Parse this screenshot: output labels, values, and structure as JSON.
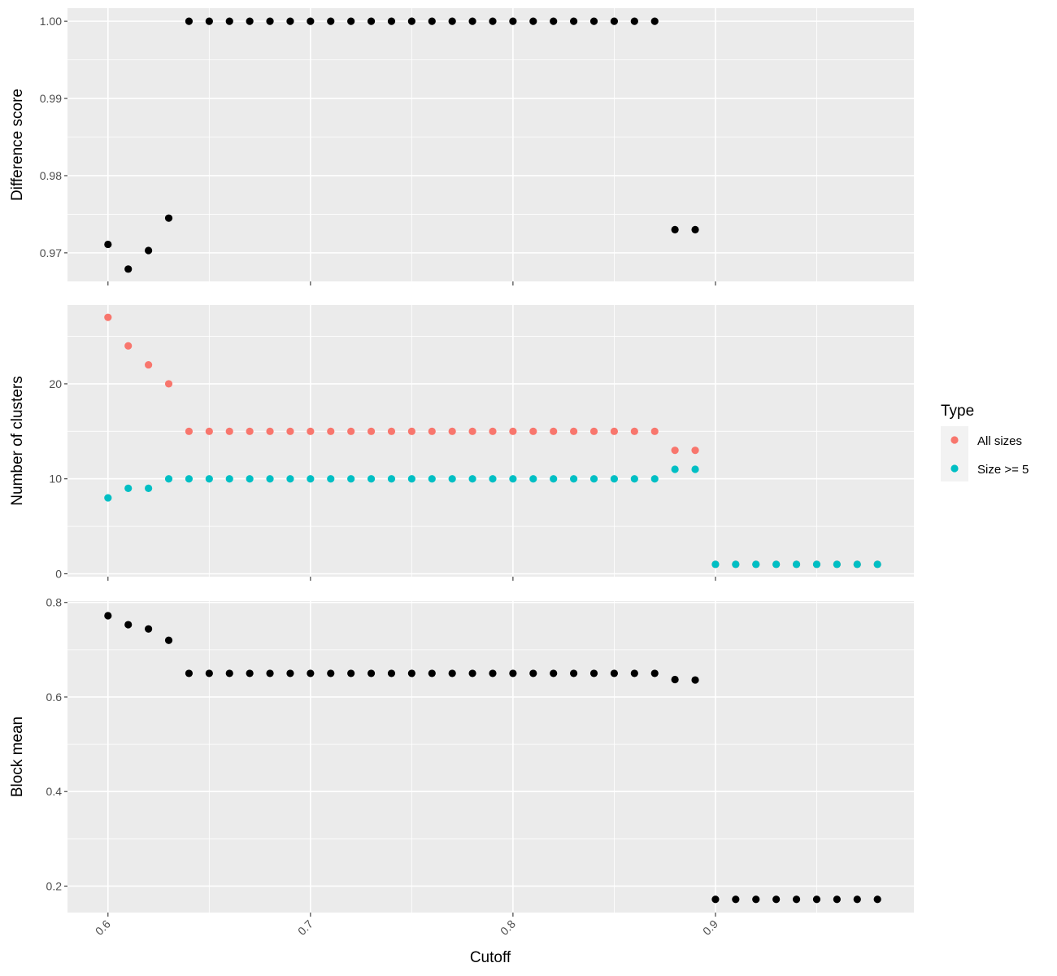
{
  "chart_data": {
    "type": "scatter",
    "xlabel": "Cutoff",
    "xlim": [
      0.58,
      0.998
    ],
    "x_ticks": [
      0.6,
      0.7,
      0.8,
      0.9
    ],
    "x_tick_labels": [
      "0.6",
      "0.7",
      "0.8",
      "0.9"
    ],
    "grid": true,
    "legend": {
      "title": "Type",
      "placement": "right",
      "entries": [
        {
          "label": "All sizes",
          "color": "#F8766D"
        },
        {
          "label": "Size >= 5",
          "color": "#00BFC4"
        }
      ]
    },
    "panels": [
      {
        "id": "difference",
        "ylabel": "Difference score",
        "ylim": [
          0.9663,
          1.0017
        ],
        "y_ticks": [
          0.97,
          0.98,
          0.99,
          1.0
        ],
        "y_tick_labels": [
          "0.97",
          "0.98",
          "0.99",
          "1.00"
        ],
        "series": [
          {
            "color": "#000000",
            "x": [
              0.6,
              0.61,
              0.62,
              0.63,
              0.64,
              0.65,
              0.66,
              0.67,
              0.68,
              0.69,
              0.7,
              0.71,
              0.72,
              0.73,
              0.74,
              0.75,
              0.76,
              0.77,
              0.78,
              0.79,
              0.8,
              0.81,
              0.82,
              0.83,
              0.84,
              0.85,
              0.86,
              0.87,
              0.88,
              0.89
            ],
            "y": [
              0.9711,
              0.9679,
              0.9703,
              0.9745,
              1,
              1,
              1,
              1,
              1,
              1,
              1,
              1,
              1,
              1,
              1,
              1,
              1,
              1,
              1,
              1,
              1,
              1,
              1,
              1,
              1,
              1,
              1,
              1,
              0.973,
              0.973
            ]
          }
        ]
      },
      {
        "id": "clusters",
        "ylabel": "Number of clusters",
        "ylim": [
          -0.3,
          28.3
        ],
        "y_ticks": [
          0,
          10,
          20
        ],
        "y_tick_labels": [
          "0",
          "10",
          "20"
        ],
        "series": [
          {
            "name": "All sizes",
            "color": "#F8766D",
            "x": [
              0.6,
              0.61,
              0.62,
              0.63,
              0.64,
              0.65,
              0.66,
              0.67,
              0.68,
              0.69,
              0.7,
              0.71,
              0.72,
              0.73,
              0.74,
              0.75,
              0.76,
              0.77,
              0.78,
              0.79,
              0.8,
              0.81,
              0.82,
              0.83,
              0.84,
              0.85,
              0.86,
              0.87,
              0.88,
              0.89,
              0.9,
              0.91,
              0.92,
              0.93,
              0.94,
              0.95,
              0.96,
              0.97,
              0.98
            ],
            "y": [
              27,
              24,
              22,
              20,
              15,
              15,
              15,
              15,
              15,
              15,
              15,
              15,
              15,
              15,
              15,
              15,
              15,
              15,
              15,
              15,
              15,
              15,
              15,
              15,
              15,
              15,
              15,
              15,
              13,
              13,
              1,
              1,
              1,
              1,
              1,
              1,
              1,
              1,
              1
            ]
          },
          {
            "name": "Size >= 5",
            "color": "#00BFC4",
            "x": [
              0.6,
              0.61,
              0.62,
              0.63,
              0.64,
              0.65,
              0.66,
              0.67,
              0.68,
              0.69,
              0.7,
              0.71,
              0.72,
              0.73,
              0.74,
              0.75,
              0.76,
              0.77,
              0.78,
              0.79,
              0.8,
              0.81,
              0.82,
              0.83,
              0.84,
              0.85,
              0.86,
              0.87,
              0.88,
              0.89,
              0.9,
              0.91,
              0.92,
              0.93,
              0.94,
              0.95,
              0.96,
              0.97,
              0.98
            ],
            "y": [
              8,
              9,
              9,
              10,
              10,
              10,
              10,
              10,
              10,
              10,
              10,
              10,
              10,
              10,
              10,
              10,
              10,
              10,
              10,
              10,
              10,
              10,
              10,
              10,
              10,
              10,
              10,
              10,
              11,
              11,
              1,
              1,
              1,
              1,
              1,
              1,
              1,
              1,
              1
            ]
          }
        ]
      },
      {
        "id": "blockmean",
        "ylabel": "Block mean",
        "ylim": [
          0.144,
          0.803
        ],
        "y_ticks": [
          0.2,
          0.4,
          0.6,
          0.8
        ],
        "y_tick_labels": [
          "0.2",
          "0.4",
          "0.6",
          "0.8"
        ],
        "series": [
          {
            "color": "#000000",
            "x": [
              0.6,
              0.61,
              0.62,
              0.63,
              0.64,
              0.65,
              0.66,
              0.67,
              0.68,
              0.69,
              0.7,
              0.71,
              0.72,
              0.73,
              0.74,
              0.75,
              0.76,
              0.77,
              0.78,
              0.79,
              0.8,
              0.81,
              0.82,
              0.83,
              0.84,
              0.85,
              0.86,
              0.87,
              0.88,
              0.89,
              0.9,
              0.91,
              0.92,
              0.93,
              0.94,
              0.95,
              0.96,
              0.97,
              0.98
            ],
            "y": [
              0.772,
              0.753,
              0.744,
              0.72,
              0.65,
              0.65,
              0.65,
              0.65,
              0.65,
              0.65,
              0.65,
              0.65,
              0.65,
              0.65,
              0.65,
              0.65,
              0.65,
              0.65,
              0.65,
              0.65,
              0.65,
              0.65,
              0.65,
              0.65,
              0.65,
              0.65,
              0.65,
              0.65,
              0.637,
              0.636,
              0.172,
              0.172,
              0.172,
              0.172,
              0.172,
              0.172,
              0.172,
              0.172,
              0.172
            ]
          }
        ]
      }
    ]
  }
}
